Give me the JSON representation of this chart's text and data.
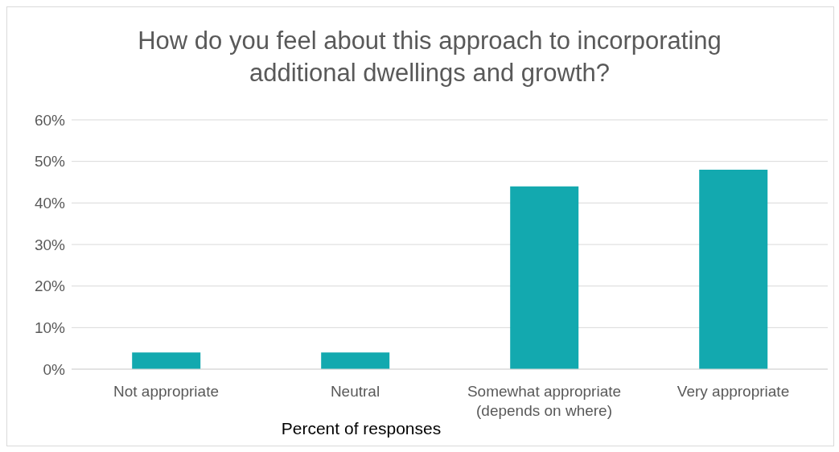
{
  "chart_data": {
    "type": "bar",
    "title": "How do you feel about this approach to incorporating additional dwellings and growth?",
    "xlabel": "Percent of responses",
    "categories": [
      "Not appropriate",
      "Neutral",
      "Somewhat appropriate (depends on where)",
      "Very appropriate"
    ],
    "values": [
      4,
      4,
      44,
      48
    ],
    "color": "#13a9af",
    "ylim": [
      0,
      60
    ],
    "yticks": [
      {
        "value": 0,
        "label": "0%"
      },
      {
        "value": 10,
        "label": "10%"
      },
      {
        "value": 20,
        "label": "20%"
      },
      {
        "value": 30,
        "label": "30%"
      },
      {
        "value": 40,
        "label": "40%"
      },
      {
        "value": 50,
        "label": "50%"
      },
      {
        "value": 60,
        "label": "60%"
      }
    ],
    "grid": "y"
  }
}
